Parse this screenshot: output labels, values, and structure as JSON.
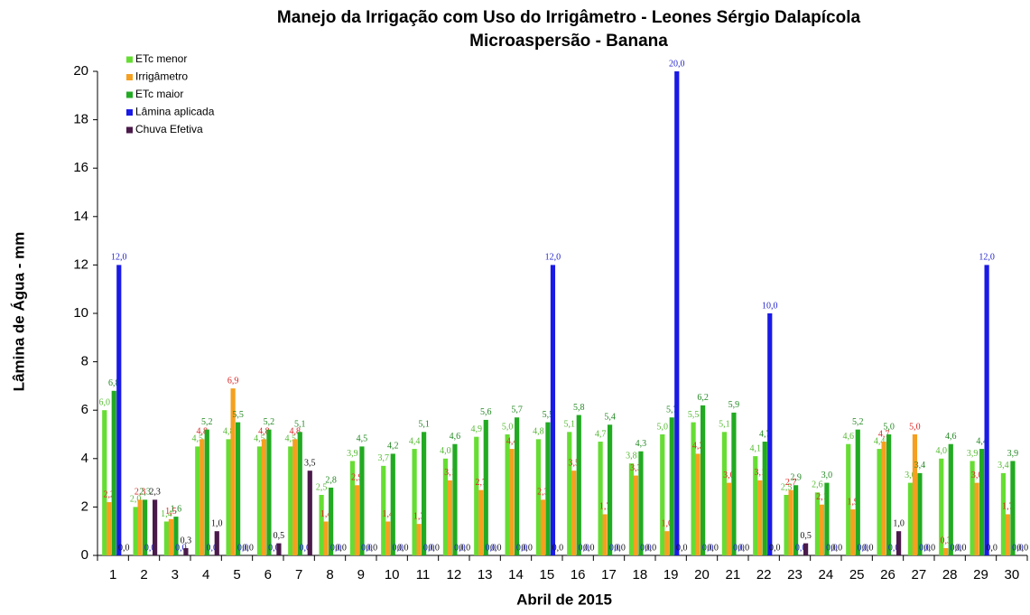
{
  "chart_data": {
    "type": "bar",
    "title": "Manejo da Irrigação com Uso do Irrigâmetro - Leones Sérgio Dalapícola",
    "subtitle": "Microaspersão - Banana",
    "x_label": "Abril de 2015",
    "y_label": "Lâmina de Água - mm",
    "categories": [
      "1",
      "2",
      "3",
      "4",
      "5",
      "6",
      "7",
      "8",
      "9",
      "10",
      "11",
      "12",
      "13",
      "14",
      "15",
      "16",
      "17",
      "18",
      "19",
      "20",
      "21",
      "22",
      "23",
      "24",
      "25",
      "26",
      "27",
      "28",
      "29",
      "30"
    ],
    "ylim": [
      0,
      20
    ],
    "yticks": [
      0,
      2,
      4,
      6,
      8,
      10,
      12,
      14,
      16,
      18,
      20
    ],
    "legend": "top-left",
    "series": [
      {
        "name": "ETc menor",
        "color": "#66dd33",
        "label_color": "#55bb33",
        "values": [
          6.0,
          2.0,
          1.4,
          4.5,
          4.8,
          4.5,
          4.5,
          2.5,
          3.9,
          3.7,
          4.4,
          4.0,
          4.9,
          5.0,
          4.8,
          5.1,
          4.7,
          3.8,
          5.0,
          5.5,
          5.1,
          4.1,
          2.5,
          2.6,
          4.6,
          4.4,
          3.0,
          4.0,
          3.9,
          3.4
        ],
        "value_labels": [
          "6,0",
          "2,0",
          "1,4",
          "4,5",
          "4,8",
          "4,5",
          "4,5",
          "2,5",
          "3,9",
          "3,7",
          "4,4",
          "4,0",
          "4,9",
          "5,0",
          "4,8",
          "5,1",
          "4,7",
          "3,8",
          "5,0",
          "5,5",
          "5,1",
          "4,1",
          "2,5",
          "2,6",
          "4,6",
          "4,4",
          "3,0",
          "4,0",
          "3,9",
          "3,4"
        ]
      },
      {
        "name": "Irrigâmetro",
        "color": "#f5a020",
        "label_color": "#dd2222",
        "values": [
          2.2,
          2.3,
          1.5,
          4.8,
          6.9,
          4.8,
          4.8,
          1.4,
          2.9,
          1.4,
          1.3,
          3.1,
          2.7,
          4.4,
          2.3,
          3.5,
          1.7,
          3.3,
          1.0,
          4.2,
          3.0,
          3.1,
          2.7,
          2.1,
          1.9,
          4.7,
          5.0,
          0.3,
          3.0,
          1.7
        ],
        "value_labels": [
          "2,2",
          "2,3",
          "1,5",
          "4,8",
          "6,9",
          "4,8",
          "4,8",
          "1,4",
          "2,9",
          "1,4",
          "1,3",
          "3,1",
          "2,7",
          "4,4",
          "2,3",
          "3,5",
          "1,7",
          "3,3",
          "1,0",
          "4,2",
          "3,0",
          "3,1",
          "2,7",
          "2,1",
          "1,9",
          "4,7",
          "5,0",
          "0,3",
          "3,0",
          "1,7"
        ]
      },
      {
        "name": "ETc maior",
        "color": "#22aa22",
        "label_color": "#228822",
        "values": [
          6.8,
          2.3,
          1.6,
          5.2,
          5.5,
          5.2,
          5.1,
          2.8,
          4.5,
          4.2,
          5.1,
          4.6,
          5.6,
          5.7,
          5.5,
          5.8,
          5.4,
          4.3,
          5.7,
          6.2,
          5.9,
          4.7,
          2.9,
          3.0,
          5.2,
          5.0,
          3.4,
          4.6,
          4.4,
          3.9
        ],
        "value_labels": [
          "6,8",
          "2,3",
          "1,6",
          "5,2",
          "5,5",
          "5,2",
          "5,1",
          "2,8",
          "4,5",
          "4,2",
          "5,1",
          "4,6",
          "5,6",
          "5,7",
          "5,5",
          "5,8",
          "5,4",
          "4,3",
          "5,7",
          "6,2",
          "5,9",
          "4,7",
          "2,9",
          "3,0",
          "5,2",
          "5,0",
          "3,4",
          "4,6",
          "4,4",
          "3,9"
        ]
      },
      {
        "name": "Lâmina aplicada",
        "color": "#1a1ae6",
        "label_color": "#2222cc",
        "values": [
          12.0,
          0,
          0,
          0,
          0,
          0,
          0,
          0,
          0,
          0,
          0,
          0,
          0,
          0,
          12.0,
          0,
          0,
          0,
          20.0,
          0,
          0,
          10.0,
          0,
          0,
          0,
          0,
          0,
          0,
          12.0,
          0
        ],
        "value_labels": [
          "12,0",
          "0,0",
          "0,0",
          "0,0",
          "0,0",
          "0,0",
          "0,0",
          "0,0",
          "0,0",
          "0,0",
          "0,0",
          "0,0",
          "0,0",
          "0,0",
          "12,0",
          "0,0",
          "0,0",
          "0,0",
          "20,0",
          "0,0",
          "0,0",
          "10,0",
          "0,0",
          "0,0",
          "0,0",
          "0,0",
          "0,0",
          "0,0",
          "12,0",
          "0,0"
        ]
      },
      {
        "name": "Chuva Efetiva",
        "color": "#4a1a4a",
        "label_color": "#111111",
        "values": [
          0,
          2.3,
          0.3,
          1.0,
          0,
          0.5,
          3.5,
          0,
          0,
          0,
          0,
          0,
          0,
          0,
          0,
          0,
          0,
          0,
          0,
          0,
          0,
          0,
          0.5,
          0,
          0,
          1.0,
          0,
          0,
          0,
          0
        ],
        "value_labels": [
          "0,0",
          "2,3",
          "0,3",
          "1,0",
          "0,0",
          "0,5",
          "3,5",
          "0,0",
          "0,0",
          "0,0",
          "0,0",
          "0,0",
          "0,0",
          "0,0",
          "0,0",
          "0,0",
          "0,0",
          "0,0",
          "0,0",
          "0,0",
          "0,0",
          "0,0",
          "0,5",
          "0,0",
          "0,0",
          "1,0",
          "0,0",
          "0,0",
          "0,0",
          "0,0"
        ]
      }
    ]
  }
}
